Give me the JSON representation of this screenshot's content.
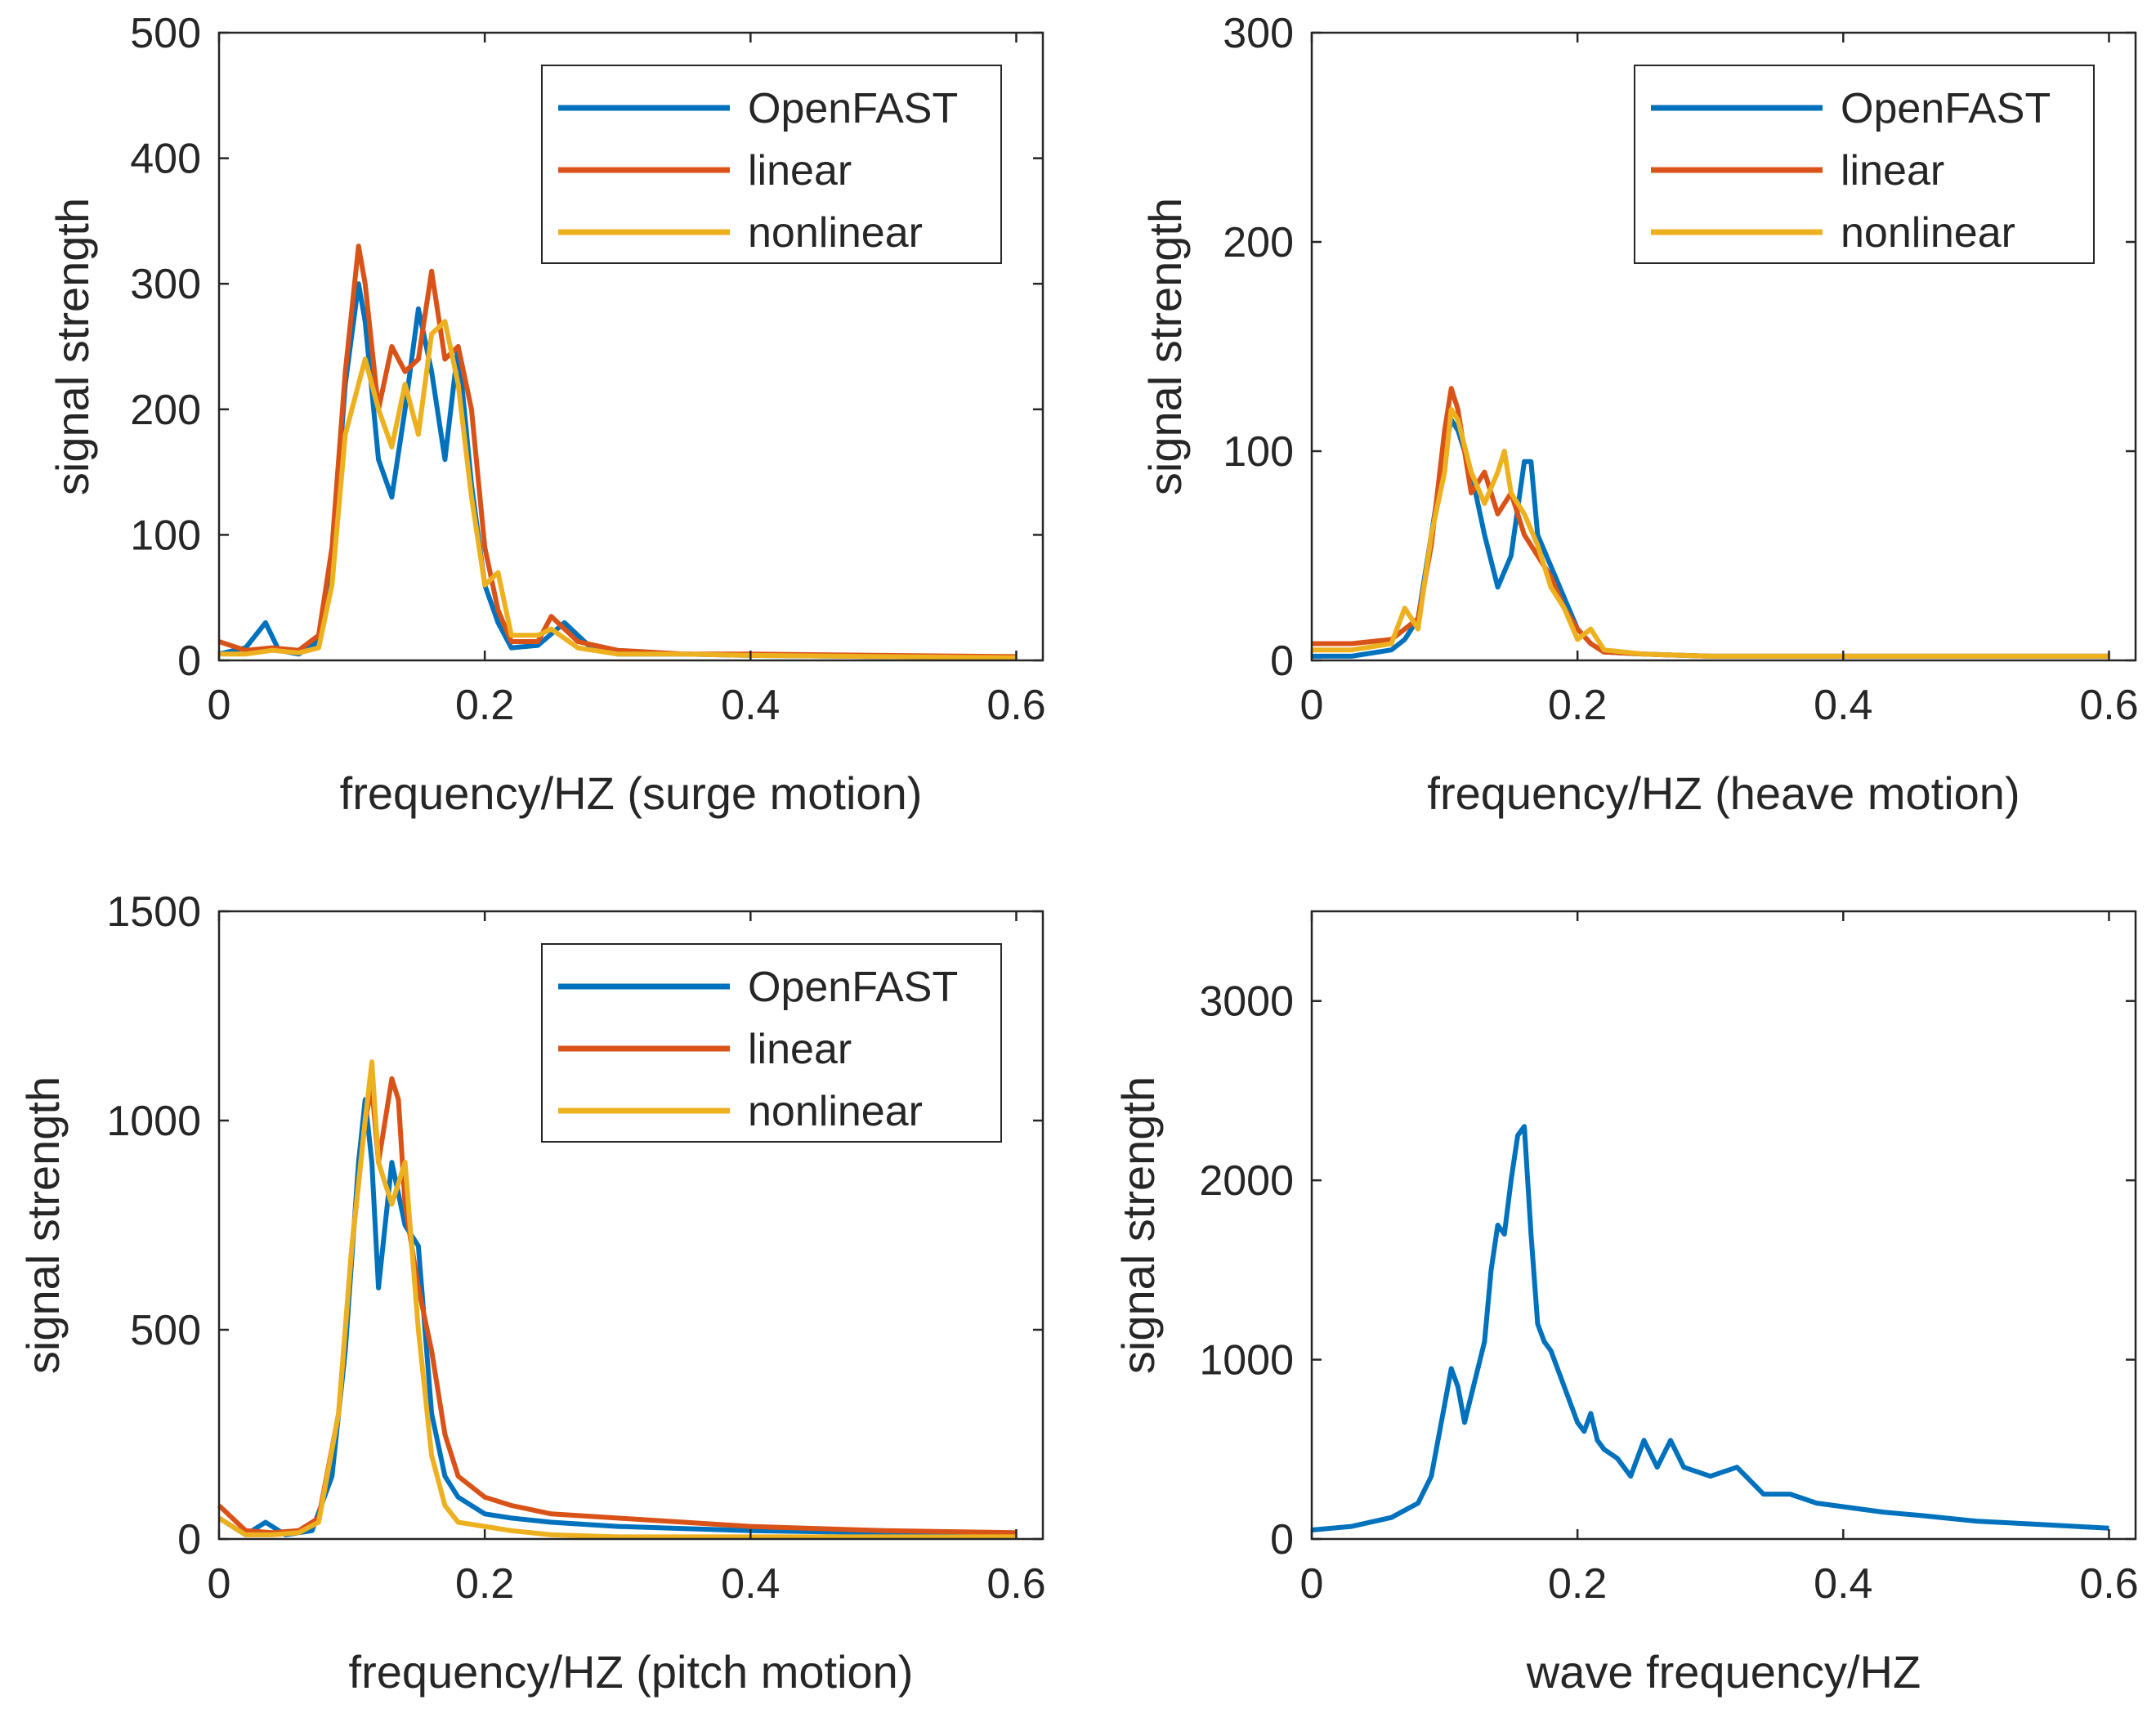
{
  "colors": {
    "openfast": "#0072BD",
    "linear": "#D95319",
    "nonlinear": "#EDB120",
    "axis": "#262626",
    "background": "#ffffff"
  },
  "chart_data": [
    {
      "type": "line",
      "panel": "surge",
      "xlabel": "frequency/HZ (surge motion)",
      "ylabel": "signal strength",
      "xlim": [
        0,
        0.6
      ],
      "ylim": [
        0,
        500
      ],
      "xticks": [
        0,
        0.2,
        0.4,
        0.6
      ],
      "xtick_labels": [
        "0",
        "0.2",
        "0.4",
        "0.6"
      ],
      "yticks": [
        0,
        100,
        200,
        300,
        400,
        500
      ],
      "ytick_labels": [
        "0",
        "100",
        "200",
        "300",
        "400",
        "500"
      ],
      "legend": {
        "position": "top-right",
        "entries": [
          "OpenFAST",
          "linear",
          "nonlinear"
        ]
      },
      "series": [
        {
          "name": "OpenFAST",
          "color_key": "openfast",
          "x": [
            0,
            0.02,
            0.035,
            0.045,
            0.06,
            0.075,
            0.085,
            0.095,
            0.105,
            0.11,
            0.12,
            0.13,
            0.14,
            0.15,
            0.16,
            0.17,
            0.18,
            0.19,
            0.2,
            0.21,
            0.22,
            0.24,
            0.26,
            0.28,
            0.3,
            0.35,
            0.4,
            0.5,
            0.6
          ],
          "y": [
            5,
            10,
            30,
            8,
            5,
            15,
            80,
            220,
            300,
            270,
            160,
            130,
            200,
            280,
            230,
            160,
            250,
            140,
            60,
            30,
            10,
            12,
            30,
            10,
            5,
            5,
            4,
            3,
            2
          ]
        },
        {
          "name": "linear",
          "color_key": "linear",
          "x": [
            0,
            0.02,
            0.04,
            0.06,
            0.075,
            0.085,
            0.095,
            0.105,
            0.11,
            0.12,
            0.13,
            0.14,
            0.15,
            0.16,
            0.17,
            0.18,
            0.19,
            0.2,
            0.21,
            0.22,
            0.24,
            0.25,
            0.27,
            0.3,
            0.35,
            0.4,
            0.5,
            0.6
          ],
          "y": [
            15,
            8,
            10,
            8,
            20,
            90,
            230,
            330,
            300,
            200,
            250,
            230,
            240,
            310,
            240,
            250,
            200,
            90,
            40,
            15,
            15,
            35,
            15,
            8,
            5,
            5,
            4,
            3
          ]
        },
        {
          "name": "nonlinear",
          "color_key": "nonlinear",
          "x": [
            0,
            0.02,
            0.04,
            0.06,
            0.075,
            0.085,
            0.095,
            0.105,
            0.11,
            0.12,
            0.13,
            0.14,
            0.15,
            0.16,
            0.17,
            0.18,
            0.19,
            0.2,
            0.21,
            0.22,
            0.24,
            0.25,
            0.27,
            0.3,
            0.35,
            0.4,
            0.5,
            0.6
          ],
          "y": [
            5,
            5,
            8,
            6,
            10,
            60,
            180,
            220,
            240,
            200,
            170,
            220,
            180,
            260,
            270,
            220,
            130,
            60,
            70,
            20,
            20,
            25,
            10,
            5,
            5,
            4,
            3,
            2
          ]
        }
      ]
    },
    {
      "type": "line",
      "panel": "heave",
      "xlabel": "frequency/HZ (heave motion)",
      "ylabel": "signal strength",
      "xlim": [
        0,
        0.6
      ],
      "ylim": [
        0,
        300
      ],
      "xticks": [
        0,
        0.2,
        0.4,
        0.6
      ],
      "xtick_labels": [
        "0",
        "0.2",
        "0.4",
        "0.6"
      ],
      "yticks": [
        0,
        100,
        200,
        300
      ],
      "ytick_labels": [
        "0",
        "100",
        "200",
        "300"
      ],
      "legend": {
        "position": "top-right",
        "entries": [
          "OpenFAST",
          "linear",
          "nonlinear"
        ]
      },
      "series": [
        {
          "name": "OpenFAST",
          "color_key": "openfast",
          "x": [
            0,
            0.03,
            0.06,
            0.07,
            0.08,
            0.09,
            0.1,
            0.105,
            0.11,
            0.12,
            0.13,
            0.14,
            0.15,
            0.16,
            0.165,
            0.17,
            0.18,
            0.19,
            0.2,
            0.21,
            0.22,
            0.25,
            0.3,
            0.4,
            0.5,
            0.6
          ],
          "y": [
            2,
            2,
            5,
            10,
            20,
            60,
            100,
            115,
            110,
            90,
            60,
            35,
            50,
            95,
            95,
            60,
            45,
            30,
            15,
            8,
            4,
            3,
            2,
            2,
            2,
            2
          ]
        },
        {
          "name": "linear",
          "color_key": "linear",
          "x": [
            0,
            0.03,
            0.06,
            0.07,
            0.08,
            0.09,
            0.1,
            0.105,
            0.11,
            0.12,
            0.13,
            0.14,
            0.15,
            0.16,
            0.17,
            0.18,
            0.19,
            0.2,
            0.21,
            0.22,
            0.25,
            0.3,
            0.4,
            0.5,
            0.6
          ],
          "y": [
            8,
            8,
            10,
            15,
            20,
            55,
            110,
            130,
            120,
            80,
            90,
            70,
            80,
            60,
            50,
            40,
            25,
            15,
            8,
            4,
            3,
            2,
            2,
            2,
            2
          ]
        },
        {
          "name": "nonlinear",
          "color_key": "nonlinear",
          "x": [
            0,
            0.03,
            0.06,
            0.07,
            0.08,
            0.09,
            0.1,
            0.105,
            0.11,
            0.12,
            0.13,
            0.14,
            0.145,
            0.15,
            0.16,
            0.17,
            0.18,
            0.19,
            0.2,
            0.21,
            0.22,
            0.25,
            0.3,
            0.4,
            0.5,
            0.6
          ],
          "y": [
            5,
            5,
            8,
            25,
            15,
            60,
            90,
            120,
            115,
            90,
            75,
            90,
            100,
            80,
            70,
            55,
            35,
            25,
            10,
            15,
            5,
            3,
            2,
            2,
            2,
            2
          ]
        }
      ]
    },
    {
      "type": "line",
      "panel": "pitch",
      "xlabel": "frequency/HZ (pitch motion)",
      "ylabel": "signal strength",
      "xlim": [
        0,
        0.6
      ],
      "ylim": [
        0,
        1500
      ],
      "xticks": [
        0,
        0.2,
        0.4,
        0.6
      ],
      "xtick_labels": [
        "0",
        "0.2",
        "0.4",
        "0.6"
      ],
      "yticks": [
        0,
        500,
        1000,
        1500
      ],
      "ytick_labels": [
        "0",
        "500",
        "1000",
        "1500"
      ],
      "legend": {
        "position": "top-right",
        "entries": [
          "OpenFAST",
          "linear",
          "nonlinear"
        ]
      },
      "series": [
        {
          "name": "OpenFAST",
          "color_key": "openfast",
          "x": [
            0,
            0.02,
            0.035,
            0.05,
            0.07,
            0.085,
            0.095,
            0.105,
            0.11,
            0.115,
            0.12,
            0.13,
            0.14,
            0.15,
            0.155,
            0.16,
            0.17,
            0.18,
            0.2,
            0.22,
            0.25,
            0.3,
            0.35,
            0.4,
            0.5,
            0.6
          ],
          "y": [
            50,
            10,
            40,
            10,
            20,
            150,
            450,
            900,
            1050,
            900,
            600,
            900,
            750,
            700,
            500,
            300,
            150,
            100,
            60,
            50,
            40,
            30,
            25,
            20,
            15,
            10
          ]
        },
        {
          "name": "linear",
          "color_key": "linear",
          "x": [
            0,
            0.02,
            0.04,
            0.06,
            0.075,
            0.09,
            0.1,
            0.11,
            0.115,
            0.12,
            0.13,
            0.135,
            0.14,
            0.15,
            0.16,
            0.17,
            0.18,
            0.2,
            0.22,
            0.25,
            0.3,
            0.35,
            0.4,
            0.5,
            0.6
          ],
          "y": [
            80,
            20,
            15,
            20,
            50,
            300,
            700,
            1000,
            1080,
            900,
            1100,
            1050,
            800,
            600,
            450,
            250,
            150,
            100,
            80,
            60,
            50,
            40,
            30,
            20,
            15
          ]
        },
        {
          "name": "nonlinear",
          "color_key": "nonlinear",
          "x": [
            0,
            0.02,
            0.04,
            0.06,
            0.075,
            0.09,
            0.1,
            0.11,
            0.115,
            0.12,
            0.13,
            0.14,
            0.15,
            0.16,
            0.17,
            0.18,
            0.2,
            0.22,
            0.25,
            0.3,
            0.35,
            0.4,
            0.5,
            0.6
          ],
          "y": [
            50,
            10,
            10,
            15,
            40,
            300,
            700,
            1000,
            1140,
            900,
            800,
            900,
            500,
            200,
            80,
            40,
            30,
            20,
            10,
            5,
            5,
            5,
            5,
            5
          ]
        }
      ]
    },
    {
      "type": "line",
      "panel": "wave",
      "xlabel": "wave frequency/HZ",
      "ylabel": "signal strength",
      "xlim": [
        0,
        0.6
      ],
      "ylim": [
        0,
        3500
      ],
      "xticks": [
        0,
        0.2,
        0.4,
        0.6
      ],
      "xtick_labels": [
        "0",
        "0.2",
        "0.4",
        "0.6"
      ],
      "yticks": [
        0,
        1000,
        2000,
        3000
      ],
      "ytick_labels": [
        "0",
        "1000",
        "2000",
        "3000"
      ],
      "legend": null,
      "series": [
        {
          "name": "wave",
          "color_key": "openfast",
          "x": [
            0,
            0.03,
            0.06,
            0.08,
            0.09,
            0.1,
            0.105,
            0.11,
            0.115,
            0.12,
            0.13,
            0.135,
            0.14,
            0.145,
            0.15,
            0.155,
            0.16,
            0.165,
            0.17,
            0.175,
            0.18,
            0.19,
            0.2,
            0.205,
            0.21,
            0.215,
            0.22,
            0.23,
            0.24,
            0.25,
            0.26,
            0.27,
            0.28,
            0.3,
            0.32,
            0.34,
            0.36,
            0.38,
            0.4,
            0.43,
            0.46,
            0.5,
            0.55,
            0.6
          ],
          "y": [
            50,
            70,
            120,
            200,
            350,
            750,
            950,
            850,
            650,
            800,
            1100,
            1500,
            1750,
            1700,
            2000,
            2250,
            2300,
            1700,
            1200,
            1100,
            1050,
            850,
            650,
            600,
            700,
            550,
            500,
            450,
            350,
            550,
            400,
            550,
            400,
            350,
            400,
            250,
            250,
            200,
            180,
            150,
            130,
            100,
            80,
            60
          ]
        }
      ]
    }
  ]
}
